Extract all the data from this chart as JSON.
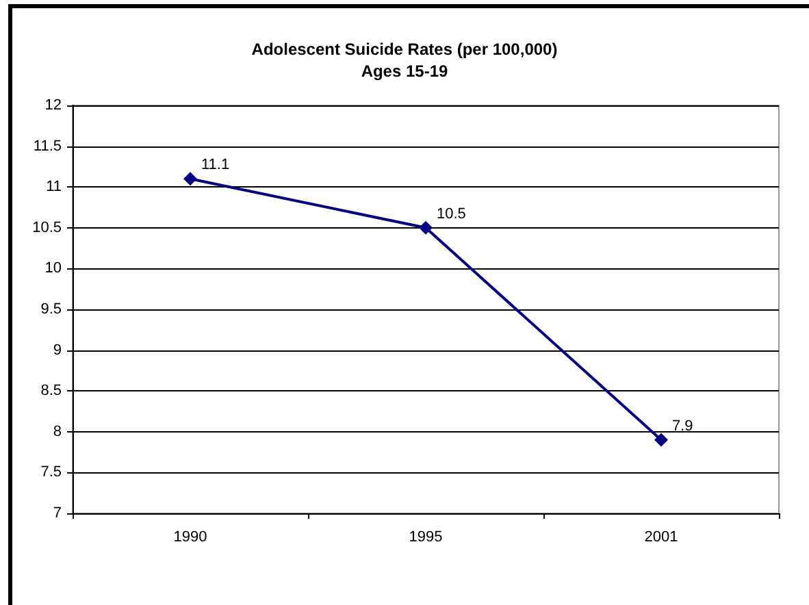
{
  "chart_data": {
    "type": "line",
    "title": "Adolescent Suicide Rates (per 100,000)",
    "subtitle": "Ages 15-19",
    "categories": [
      "1990",
      "1995",
      "2001"
    ],
    "values": [
      11.1,
      10.5,
      7.9
    ],
    "color": "#000080",
    "ylim": [
      7,
      12
    ],
    "yticks": [
      7,
      7.5,
      8,
      8.5,
      9,
      9.5,
      10,
      10.5,
      11,
      11.5,
      12
    ],
    "grid": "y",
    "marker": "diamond",
    "line_style": "solid",
    "data_labels": true
  }
}
